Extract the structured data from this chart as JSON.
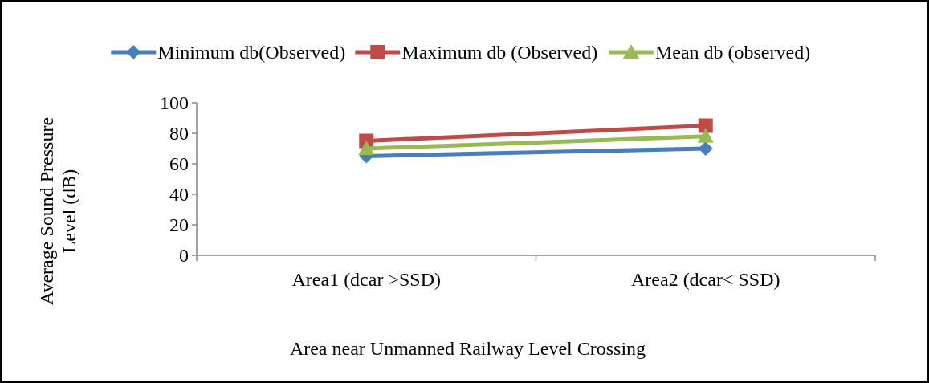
{
  "chart_data": {
    "type": "line",
    "categories": [
      "Area1 (dcar >SSD)",
      "Area2 (dcar< SSD)"
    ],
    "series": [
      {
        "name": "Minimum db(Observed)",
        "color": "#4a7ebb",
        "values": [
          65,
          70
        ],
        "marker": "diamond"
      },
      {
        "name": "Maximum db (Observed)",
        "color": "#be4b48",
        "values": [
          75,
          85
        ],
        "marker": "square"
      },
      {
        "name": "Mean db (observed)",
        "color": "#98b954",
        "values": [
          70,
          78
        ],
        "marker": "triangle"
      }
    ],
    "xlabel": "Area near Unmanned Railway Level Crossing",
    "ylabel": "Average Sound Pressure Level (dB)",
    "ylim": [
      0,
      100
    ],
    "yticks": [
      0,
      20,
      40,
      60,
      80,
      100
    ],
    "legend": "top",
    "grid": false,
    "line_style": "solid"
  }
}
